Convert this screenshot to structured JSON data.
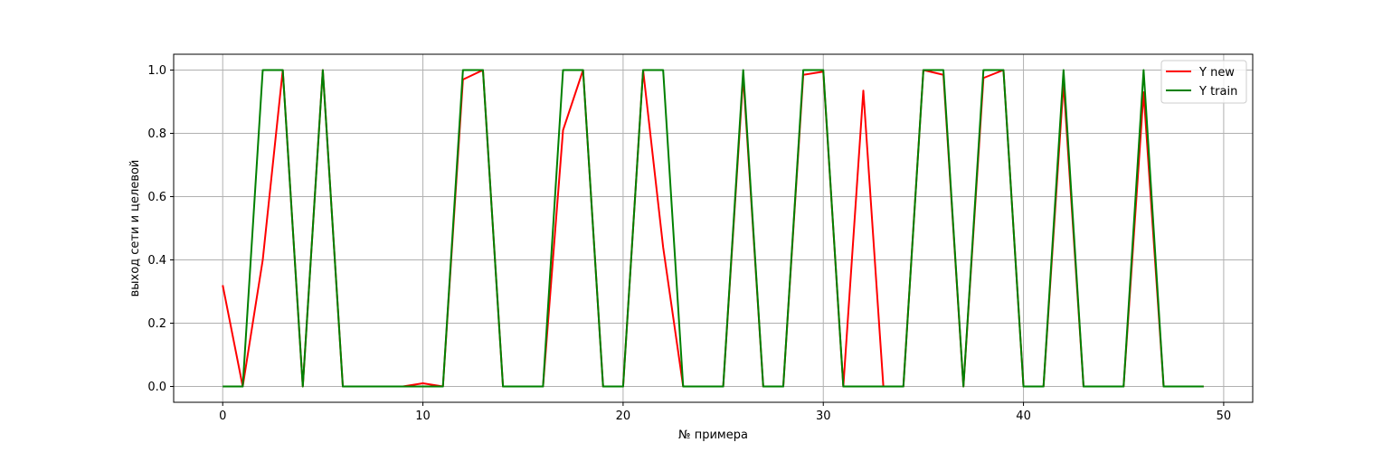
{
  "chart_data": {
    "type": "line",
    "xlabel": "№ примера",
    "ylabel": "выход сети и целевой",
    "xlim": [
      -2.45,
      51.45
    ],
    "ylim": [
      -0.05,
      1.05
    ],
    "xticks": [
      0,
      10,
      20,
      30,
      40,
      50
    ],
    "yticks": [
      0.0,
      0.2,
      0.4,
      0.6,
      0.8,
      1.0
    ],
    "xtick_labels": [
      "0",
      "10",
      "20",
      "30",
      "40",
      "50"
    ],
    "ytick_labels": [
      "0.0",
      "0.2",
      "0.4",
      "0.6",
      "0.8",
      "1.0"
    ],
    "grid": true,
    "legend_position": "top-right",
    "x": [
      0,
      1,
      2,
      3,
      4,
      5,
      6,
      7,
      8,
      9,
      10,
      11,
      12,
      13,
      14,
      15,
      16,
      17,
      18,
      19,
      20,
      21,
      22,
      23,
      24,
      25,
      26,
      27,
      28,
      29,
      30,
      31,
      32,
      33,
      34,
      35,
      36,
      37,
      38,
      39,
      40,
      41,
      42,
      43,
      44,
      45,
      46,
      47,
      48,
      49
    ],
    "series": [
      {
        "name": "Y new",
        "color": "#ff0000",
        "values": [
          0.32,
          0.0,
          0.4,
          1.0,
          0.0,
          1.0,
          0.0,
          0.0,
          0.0,
          0.0,
          0.01,
          0.0,
          0.97,
          1.0,
          0.0,
          0.0,
          0.0,
          0.81,
          1.0,
          0.0,
          0.0,
          1.0,
          0.44,
          0.0,
          0.0,
          0.0,
          0.98,
          0.0,
          0.0,
          0.985,
          0.995,
          0.0,
          0.935,
          0.0,
          0.0,
          1.0,
          0.985,
          0.0,
          0.975,
          1.0,
          0.0,
          0.0,
          0.96,
          0.0,
          0.0,
          0.0,
          0.93,
          0.0,
          0.0,
          0.0
        ]
      },
      {
        "name": "Y train",
        "color": "#008000",
        "values": [
          0,
          0,
          1,
          1,
          0,
          1,
          0,
          0,
          0,
          0,
          0,
          0,
          1,
          1,
          0,
          0,
          0,
          1,
          1,
          0,
          0,
          1,
          1,
          0,
          0,
          0,
          1,
          0,
          0,
          1,
          1,
          0,
          0,
          0,
          0,
          1,
          1,
          0,
          1,
          1,
          0,
          0,
          1,
          0,
          0,
          0,
          1,
          0,
          0,
          0
        ]
      }
    ]
  }
}
